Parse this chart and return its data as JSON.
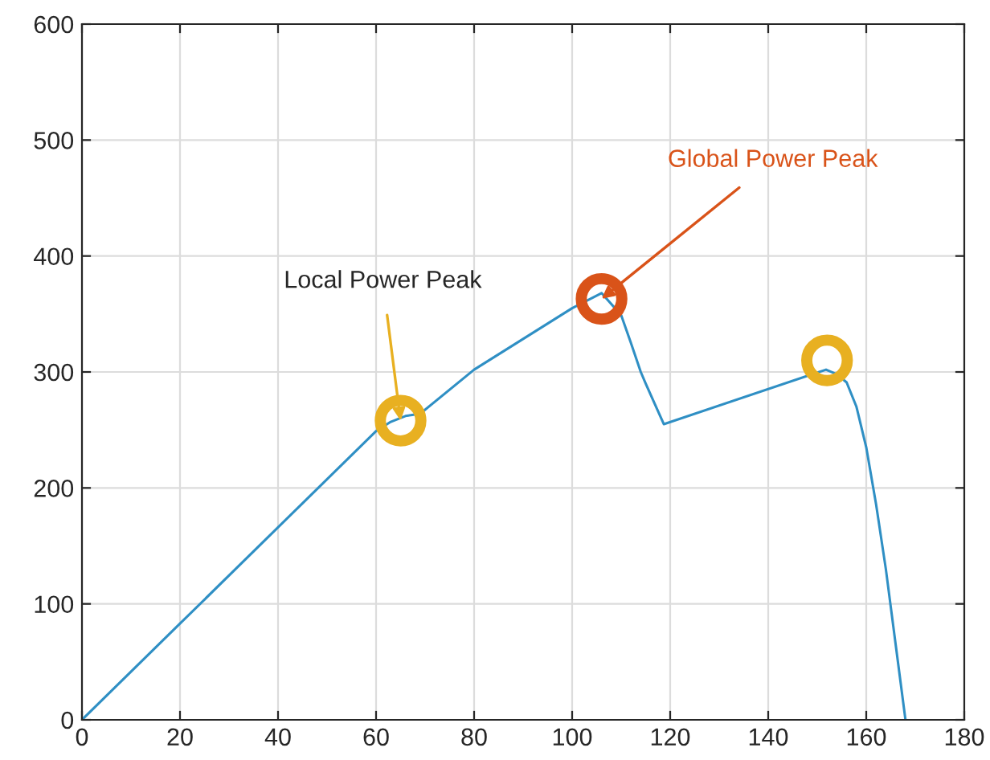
{
  "chart_data": {
    "type": "line",
    "xlim": [
      0,
      180
    ],
    "ylim": [
      0,
      600
    ],
    "xticks": [
      0,
      20,
      40,
      60,
      80,
      100,
      120,
      140,
      160,
      180
    ],
    "yticks": [
      0,
      100,
      200,
      300,
      400,
      500,
      600
    ],
    "grid": true,
    "marker": "none",
    "line_style": "solid",
    "series": [
      {
        "type": "line",
        "color": "#2f8fc4",
        "x": [
          0,
          20,
          40,
          60,
          63,
          66,
          69,
          80,
          100,
          106,
          110,
          112,
          114,
          115,
          118.7,
          151.8,
          154,
          156,
          158,
          160,
          162,
          164,
          166,
          168
        ],
        "values": [
          0,
          83,
          166,
          249,
          257,
          262,
          264,
          302,
          355,
          368,
          349,
          325,
          300,
          290,
          255,
          302,
          298,
          291,
          270,
          235,
          186,
          130,
          65,
          0
        ]
      },
      {
        "type": "scatter",
        "marker": "circle",
        "colors": [
          "#e8b021",
          "#d95319",
          "#e8b021"
        ],
        "x": [
          65,
          106,
          152
        ],
        "values": [
          258,
          363,
          310
        ]
      }
    ],
    "annotations": [
      {
        "text": "Local Power Peak",
        "x": 65,
        "y": 258
      },
      {
        "text": "Global Power Peak",
        "x": 106,
        "y": 363
      }
    ]
  }
}
